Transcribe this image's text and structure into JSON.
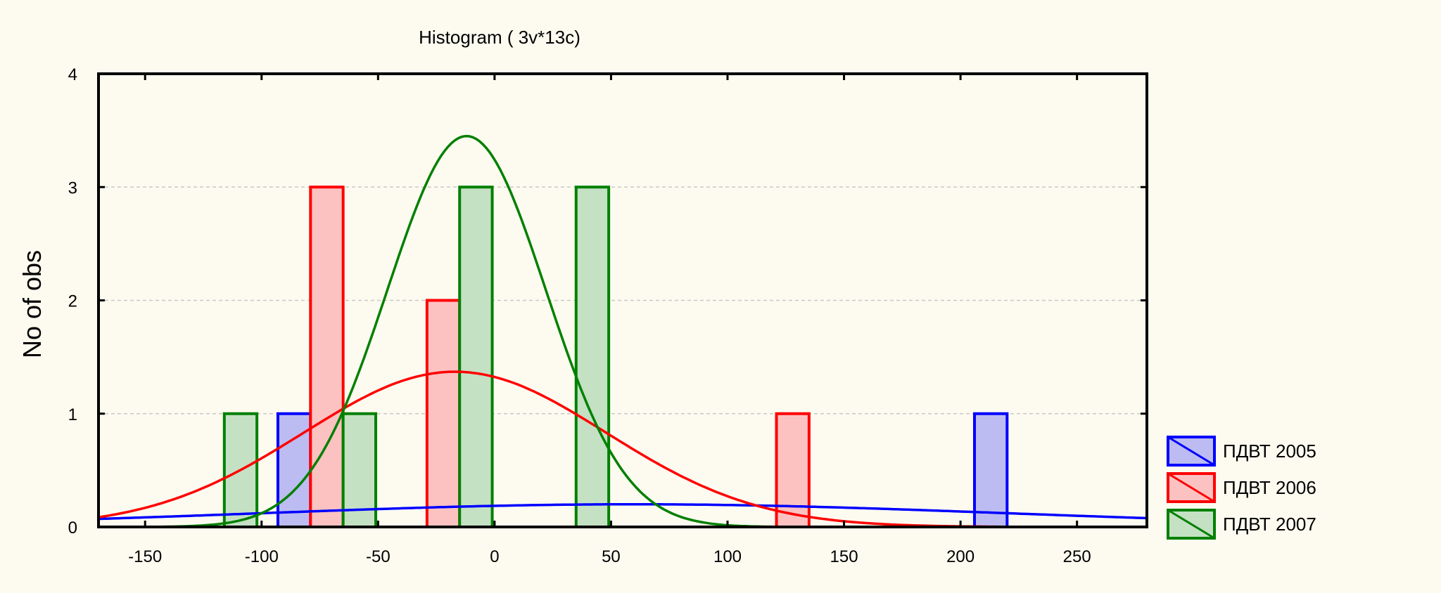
{
  "chart_data": {
    "type": "bar",
    "title": "Histogram ( 3v*13c)",
    "xlabel": "",
    "ylabel": "No of obs",
    "xlim": [
      -170,
      280
    ],
    "ylim": [
      0,
      4
    ],
    "x_ticks": [
      -150,
      -100,
      -50,
      0,
      50,
      100,
      150,
      200,
      250
    ],
    "y_ticks": [
      0,
      1,
      2,
      3,
      4
    ],
    "grid": "horizontal dashed",
    "legend_position": "right",
    "series": [
      {
        "name": "ПДВТ 2005",
        "color": "#0000ff",
        "fill": "#bcbcf2",
        "bars": [
          {
            "x0": -93,
            "x1": -79,
            "value": 1
          },
          {
            "x0": 206,
            "x1": 220,
            "value": 1
          }
        ],
        "curve": {
          "mean": 60,
          "sd": 160,
          "peak": 0.2
        }
      },
      {
        "name": "ПДВТ 2006",
        "color": "#ff0000",
        "fill": "#fcc2c2",
        "bars": [
          {
            "x0": -79,
            "x1": -65,
            "value": 3
          },
          {
            "x0": -29,
            "x1": -15,
            "value": 2
          },
          {
            "x0": 121,
            "x1": 135,
            "value": 1
          }
        ],
        "curve": {
          "mean": -17,
          "sd": 65,
          "peak": 1.37
        }
      },
      {
        "name": "ПДВТ 2007",
        "color": "#008000",
        "fill": "#c4e1c4",
        "bars": [
          {
            "x0": -116,
            "x1": -102,
            "value": 1
          },
          {
            "x0": -65,
            "x1": -51,
            "value": 1
          },
          {
            "x0": -15,
            "x1": -1,
            "value": 3
          },
          {
            "x0": 35,
            "x1": 49,
            "value": 3
          }
        ],
        "curve": {
          "mean": -12,
          "sd": 34,
          "peak": 3.45
        }
      }
    ]
  }
}
